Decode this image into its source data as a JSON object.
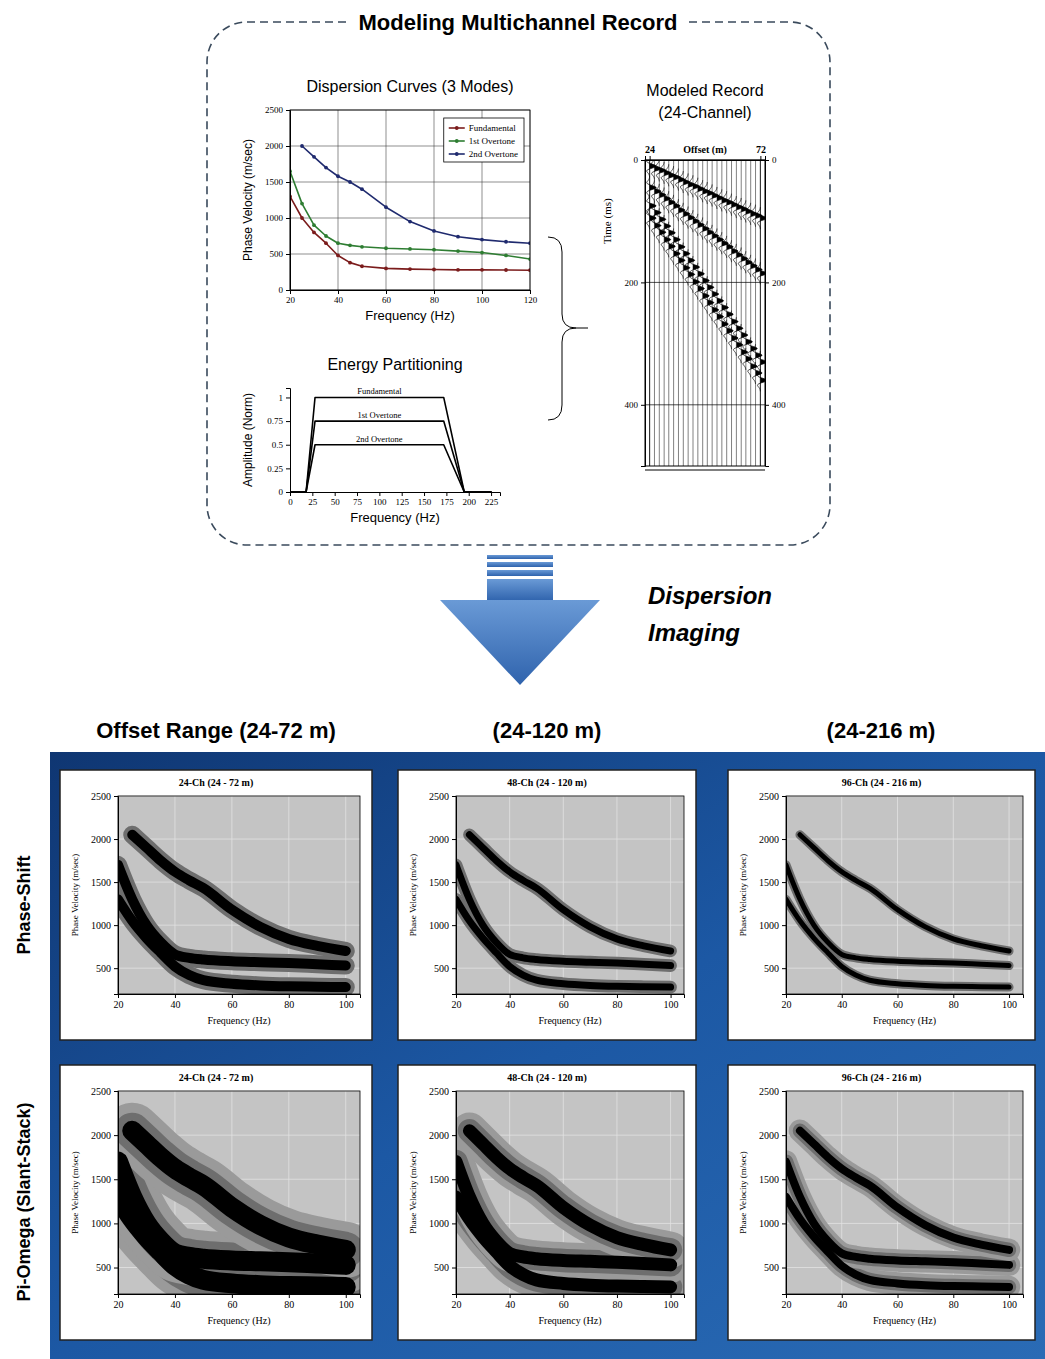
{
  "figure": {
    "title": "Modeling Multichannel Record",
    "arrow_label": "Dispersion Imaging",
    "column_heads": [
      "Offset Range (24-72 m)",
      "(24-120 m)",
      "(24-216 m)"
    ],
    "row_heads": [
      "Phase-Shift",
      "Pi-Omega (Slant-Stack)"
    ]
  },
  "chart_data": [
    {
      "type": "line",
      "title": "Dispersion Curves (3 Modes)",
      "x_label": "Frequency (Hz)",
      "y_label": "Phase Velocity (m/sec)",
      "x": [
        20,
        25,
        30,
        35,
        40,
        45,
        50,
        60,
        70,
        80,
        90,
        100,
        110,
        120
      ],
      "xlim": [
        20,
        120
      ],
      "xticks": [
        20,
        40,
        60,
        80,
        100,
        120
      ],
      "ylim": [
        0,
        2500
      ],
      "yticks": [
        0,
        500,
        1000,
        1500,
        2000,
        2500
      ],
      "grid": true,
      "legend": "top-right",
      "marker": "circle",
      "series": [
        {
          "name": "Fundamental",
          "color": "#7b1c1c",
          "values": [
            1300,
            1000,
            800,
            650,
            480,
            380,
            330,
            300,
            290,
            285,
            280,
            280,
            278,
            275
          ]
        },
        {
          "name": "1st Overtone",
          "color": "#2e7d32",
          "values": [
            1650,
            1200,
            900,
            750,
            650,
            620,
            600,
            580,
            570,
            560,
            540,
            520,
            480,
            430
          ]
        },
        {
          "name": "2nd Overtone",
          "color": "#1f2a6e",
          "values": [
            null,
            2000,
            1850,
            1700,
            1580,
            1500,
            1400,
            1150,
            950,
            820,
            740,
            700,
            670,
            650
          ]
        }
      ]
    },
    {
      "type": "line",
      "title": "Energy Partitioning",
      "x_label": "Frequency (Hz)",
      "y_label": "Amplitude (Norm)",
      "x": [
        0,
        18,
        28,
        172,
        195,
        225
      ],
      "xlim": [
        0,
        235
      ],
      "xticks": [
        0,
        25,
        50,
        75,
        100,
        125,
        150,
        175,
        200,
        225
      ],
      "ylim": [
        0,
        1.1
      ],
      "yticks": [
        0,
        0.25,
        0.5,
        0.75,
        1
      ],
      "legend": "inline",
      "series": [
        {
          "name": "Fundamental",
          "color": "#000000",
          "values": [
            0,
            0,
            1,
            1,
            0,
            0
          ]
        },
        {
          "name": "1st Overtone",
          "color": "#000000",
          "values": [
            0,
            0,
            0.75,
            0.75,
            0,
            0
          ]
        },
        {
          "name": "2nd Overtone",
          "color": "#000000",
          "values": [
            0,
            0,
            0.5,
            0.5,
            0,
            0
          ]
        }
      ]
    },
    {
      "type": "wiggle",
      "title": "Modeled Record (24-Channel)",
      "x_label": "Offset (m)",
      "y_label": "Time (ms)",
      "x": [
        24,
        26.1,
        28.2,
        30.3,
        32.3,
        34.4,
        36.5,
        38.6,
        40.7,
        42.8,
        44.9,
        47,
        49,
        51.1,
        53.2,
        55.3,
        57.4,
        59.5,
        61.6,
        63.7,
        65.7,
        67.8,
        69.9,
        72
      ],
      "xlim": [
        22,
        74
      ],
      "xticks": [
        24,
        72
      ],
      "ylim": [
        0,
        500
      ],
      "yticks": [
        0,
        200,
        400
      ],
      "y2lim": [
        0,
        500
      ],
      "y2ticks": [
        0,
        200,
        400
      ],
      "grid": true,
      "color": "#000000",
      "series": [
        {
          "values": [
            10,
            14,
            17,
            21,
            25,
            28,
            32,
            36,
            40,
            43,
            47,
            51,
            54,
            58,
            62,
            66,
            69,
            73,
            77,
            80,
            84,
            88,
            91,
            95
          ]
        },
        {
          "values": [
            45,
            51,
            57,
            63,
            69,
            75,
            82,
            88,
            94,
            100,
            106,
            112,
            118,
            124,
            130,
            136,
            142,
            149,
            155,
            161,
            167,
            173,
            179,
            185
          ]
        },
        {
          "values": [
            75,
            86,
            97,
            108,
            119,
            130,
            142,
            153,
            164,
            175,
            186,
            197,
            208,
            219,
            230,
            241,
            252,
            264,
            275,
            286,
            297,
            308,
            319,
            330
          ]
        },
        {
          "values": [
            95,
            107,
            118,
            130,
            141,
            153,
            164,
            176,
            187,
            199,
            210,
            222,
            233,
            245,
            256,
            268,
            279,
            291,
            302,
            314,
            325,
            337,
            348,
            360
          ]
        }
      ]
    },
    {
      "type": "dispersion",
      "title": "24-Ch (24 - 72 m)",
      "x_label": "Frequency (Hz)",
      "y_label": "Phase Velocity (m/sec)",
      "x": [
        20,
        25,
        30,
        35,
        40,
        45,
        50,
        60,
        70,
        80,
        90,
        100
      ],
      "xlim": [
        20,
        105
      ],
      "xticks": [
        20,
        40,
        60,
        80,
        100
      ],
      "ylim": [
        200,
        2500
      ],
      "yticks": [
        500,
        1000,
        1500,
        2000,
        2500
      ],
      "grid": true,
      "color": "#000000",
      "series": [
        {
          "values": [
            1300,
            1050,
            850,
            680,
            520,
            420,
            360,
            320,
            300,
            290,
            285,
            280
          ]
        },
        {
          "values": [
            1700,
            1300,
            1000,
            800,
            660,
            620,
            600,
            580,
            570,
            560,
            545,
            530
          ]
        },
        {
          "values": [
            null,
            2050,
            1900,
            1750,
            1620,
            1520,
            1430,
            1180,
            980,
            840,
            760,
            700
          ]
        }
      ]
    },
    {
      "type": "dispersion",
      "title": "48-Ch (24 - 120 m)",
      "x_label": "Frequency (Hz)",
      "y_label": "Phase Velocity (m/sec)",
      "x": [
        20,
        25,
        30,
        35,
        40,
        45,
        50,
        60,
        70,
        80,
        90,
        100
      ],
      "xlim": [
        20,
        105
      ],
      "xticks": [
        20,
        40,
        60,
        80,
        100
      ],
      "ylim": [
        200,
        2500
      ],
      "yticks": [
        500,
        1000,
        1500,
        2000,
        2500
      ],
      "grid": true,
      "color": "#000000",
      "series": [
        {
          "values": [
            1300,
            1050,
            850,
            680,
            520,
            420,
            360,
            320,
            300,
            290,
            285,
            280
          ]
        },
        {
          "values": [
            1700,
            1300,
            1000,
            800,
            660,
            620,
            600,
            580,
            570,
            560,
            545,
            530
          ]
        },
        {
          "values": [
            null,
            2050,
            1900,
            1750,
            1620,
            1520,
            1430,
            1180,
            980,
            840,
            760,
            700
          ]
        }
      ]
    },
    {
      "type": "dispersion",
      "title": "96-Ch (24 - 216 m)",
      "x_label": "Frequency (Hz)",
      "y_label": "Phase Velocity (m/sec)",
      "x": [
        20,
        25,
        30,
        35,
        40,
        45,
        50,
        60,
        70,
        80,
        90,
        100
      ],
      "xlim": [
        20,
        105
      ],
      "xticks": [
        20,
        40,
        60,
        80,
        100
      ],
      "ylim": [
        200,
        2500
      ],
      "yticks": [
        500,
        1000,
        1500,
        2000,
        2500
      ],
      "grid": true,
      "color": "#000000",
      "series": [
        {
          "values": [
            1300,
            1050,
            850,
            680,
            520,
            420,
            360,
            320,
            300,
            290,
            285,
            280
          ]
        },
        {
          "values": [
            1700,
            1300,
            1000,
            800,
            660,
            620,
            600,
            580,
            570,
            560,
            545,
            530
          ]
        },
        {
          "values": [
            null,
            2050,
            1900,
            1750,
            1620,
            1520,
            1430,
            1180,
            980,
            840,
            760,
            700
          ]
        }
      ]
    },
    {
      "type": "dispersion",
      "title": "24-Ch (24 - 72 m)",
      "x_label": "Frequency (Hz)",
      "y_label": "Phase Velocity (m/sec)",
      "x": [
        20,
        25,
        30,
        35,
        40,
        45,
        50,
        60,
        70,
        80,
        90,
        100
      ],
      "xlim": [
        20,
        105
      ],
      "xticks": [
        20,
        40,
        60,
        80,
        100
      ],
      "ylim": [
        200,
        2500
      ],
      "yticks": [
        500,
        1000,
        1500,
        2000,
        2500
      ],
      "grid": true,
      "color": "#000000",
      "series": [
        {
          "values": [
            1300,
            1050,
            850,
            680,
            520,
            420,
            360,
            320,
            300,
            290,
            285,
            280
          ]
        },
        {
          "values": [
            1700,
            1300,
            1000,
            800,
            660,
            620,
            600,
            580,
            570,
            560,
            545,
            530
          ]
        },
        {
          "values": [
            null,
            2050,
            1900,
            1750,
            1620,
            1520,
            1430,
            1180,
            980,
            840,
            760,
            700
          ]
        }
      ]
    },
    {
      "type": "dispersion",
      "title": "48-Ch (24 - 120 m)",
      "x_label": "Frequency (Hz)",
      "y_label": "Phase Velocity (m/sec)",
      "x": [
        20,
        25,
        30,
        35,
        40,
        45,
        50,
        60,
        70,
        80,
        90,
        100
      ],
      "xlim": [
        20,
        105
      ],
      "xticks": [
        20,
        40,
        60,
        80,
        100
      ],
      "ylim": [
        200,
        2500
      ],
      "yticks": [
        500,
        1000,
        1500,
        2000,
        2500
      ],
      "grid": true,
      "color": "#000000",
      "series": [
        {
          "values": [
            1300,
            1050,
            850,
            680,
            520,
            420,
            360,
            320,
            300,
            290,
            285,
            280
          ]
        },
        {
          "values": [
            1700,
            1300,
            1000,
            800,
            660,
            620,
            600,
            580,
            570,
            560,
            545,
            530
          ]
        },
        {
          "values": [
            null,
            2050,
            1900,
            1750,
            1620,
            1520,
            1430,
            1180,
            980,
            840,
            760,
            700
          ]
        }
      ]
    },
    {
      "type": "dispersion",
      "title": "96-Ch (24 - 216 m)",
      "x_label": "Frequency (Hz)",
      "y_label": "Phase Velocity (m/sec)",
      "x": [
        20,
        25,
        30,
        35,
        40,
        45,
        50,
        60,
        70,
        80,
        90,
        100
      ],
      "xlim": [
        20,
        105
      ],
      "xticks": [
        20,
        40,
        60,
        80,
        100
      ],
      "ylim": [
        200,
        2500
      ],
      "yticks": [
        500,
        1000,
        1500,
        2000,
        2500
      ],
      "grid": true,
      "color": "#000000",
      "series": [
        {
          "values": [
            1300,
            1050,
            850,
            680,
            520,
            420,
            360,
            320,
            300,
            290,
            285,
            280
          ]
        },
        {
          "values": [
            1700,
            1300,
            1000,
            800,
            660,
            620,
            600,
            580,
            570,
            560,
            545,
            530
          ]
        },
        {
          "values": [
            null,
            2050,
            1900,
            1750,
            1620,
            1520,
            1430,
            1180,
            980,
            840,
            760,
            700
          ]
        }
      ]
    }
  ]
}
